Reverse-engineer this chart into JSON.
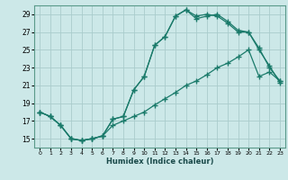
{
  "xlabel": "Humidex (Indice chaleur)",
  "bg_color": "#cce8e8",
  "grid_color": "#aacccc",
  "line_color": "#1a7a6a",
  "xlim": [
    -0.5,
    23.5
  ],
  "ylim": [
    14.0,
    30.0
  ],
  "xticks": [
    0,
    1,
    2,
    3,
    4,
    5,
    6,
    7,
    8,
    9,
    10,
    11,
    12,
    13,
    14,
    15,
    16,
    17,
    18,
    19,
    20,
    21,
    22,
    23
  ],
  "yticks": [
    15,
    17,
    19,
    21,
    23,
    25,
    27,
    29
  ],
  "line1_x": [
    0,
    1,
    2,
    3,
    4,
    5,
    6,
    7,
    8,
    9,
    10,
    11,
    12,
    13,
    14,
    15,
    16,
    17,
    18,
    19,
    20,
    21,
    22,
    23
  ],
  "line1_y": [
    18.0,
    17.5,
    16.5,
    15.0,
    14.8,
    15.0,
    15.3,
    17.2,
    17.5,
    20.5,
    22.0,
    25.5,
    26.5,
    28.8,
    29.5,
    28.8,
    29.0,
    28.8,
    28.0,
    27.0,
    27.0,
    25.2,
    23.0,
    21.5
  ],
  "line2_x": [
    0,
    1,
    2,
    3,
    4,
    5,
    6,
    7,
    8,
    9,
    10,
    11,
    12,
    13,
    14,
    15,
    16,
    17,
    18,
    19,
    20,
    21,
    22,
    23
  ],
  "line2_y": [
    18.0,
    17.5,
    16.5,
    15.0,
    14.8,
    15.0,
    15.3,
    17.2,
    17.5,
    20.5,
    22.0,
    25.5,
    26.5,
    28.8,
    29.5,
    28.5,
    28.8,
    29.0,
    28.2,
    27.2,
    27.0,
    25.0,
    23.2,
    21.3
  ],
  "line3_x": [
    0,
    1,
    2,
    3,
    4,
    5,
    6,
    7,
    8,
    9,
    10,
    11,
    12,
    13,
    14,
    15,
    16,
    17,
    18,
    19,
    20,
    21,
    22,
    23
  ],
  "line3_y": [
    18.0,
    17.5,
    16.5,
    15.0,
    14.8,
    15.0,
    15.3,
    16.5,
    17.0,
    17.5,
    18.0,
    18.8,
    19.5,
    20.2,
    21.0,
    21.5,
    22.2,
    23.0,
    23.5,
    24.2,
    25.0,
    22.0,
    22.5,
    21.5
  ]
}
